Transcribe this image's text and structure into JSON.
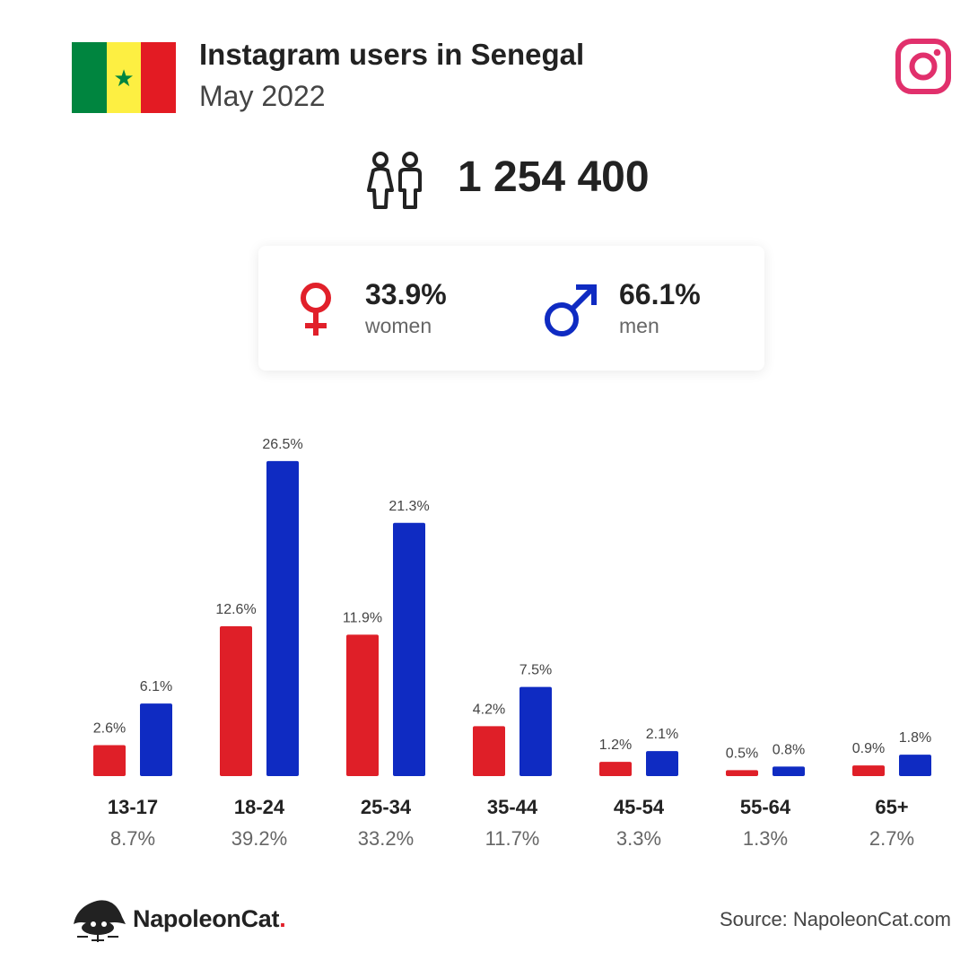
{
  "header": {
    "title": "Instagram users in Senegal",
    "subtitle": "May 2022",
    "flag_colors": [
      "#00853f",
      "#fdef42",
      "#e31b23"
    ],
    "flag_icon": "senegal-flag-icon",
    "platform_icon": "instagram-icon",
    "platform_color": "#e1306c"
  },
  "total": {
    "icon": "people-icon",
    "value": "1 254 400"
  },
  "gender": {
    "women": {
      "icon": "female-symbol-icon",
      "value": "33.9%",
      "label": "women",
      "color": "#e1202a"
    },
    "men": {
      "icon": "male-symbol-icon",
      "value": "66.1%",
      "label": "men",
      "color": "#0f2bc2"
    }
  },
  "chart_data": {
    "type": "bar",
    "categories": [
      "13-17",
      "18-24",
      "25-34",
      "35-44",
      "45-54",
      "55-64",
      "65+"
    ],
    "category_totals": [
      "8.7%",
      "39.2%",
      "33.2%",
      "11.7%",
      "3.3%",
      "1.3%",
      "2.7%"
    ],
    "series": [
      {
        "values": [
          2.6,
          12.6,
          11.9,
          4.2,
          1.2,
          0.5,
          0.9
        ],
        "labels": [
          "2.6%",
          "12.6%",
          "11.9%",
          "4.2%",
          "1.2%",
          "0.5%",
          "0.9%"
        ],
        "color": "#df1f28"
      },
      {
        "values": [
          6.1,
          26.5,
          21.3,
          7.5,
          2.1,
          0.8,
          1.8
        ],
        "labels": [
          "6.1%",
          "26.5%",
          "21.3%",
          "7.5%",
          "2.1%",
          "0.8%",
          "1.8%"
        ],
        "color": "#0f2bc2"
      }
    ],
    "grid": false,
    "legend": "none"
  },
  "footer": {
    "brand_logo": "napoleoncat-logo-icon",
    "brand": "NapoleonCat",
    "brand_dot": ".",
    "source": "Source: NapoleonCat.com"
  }
}
